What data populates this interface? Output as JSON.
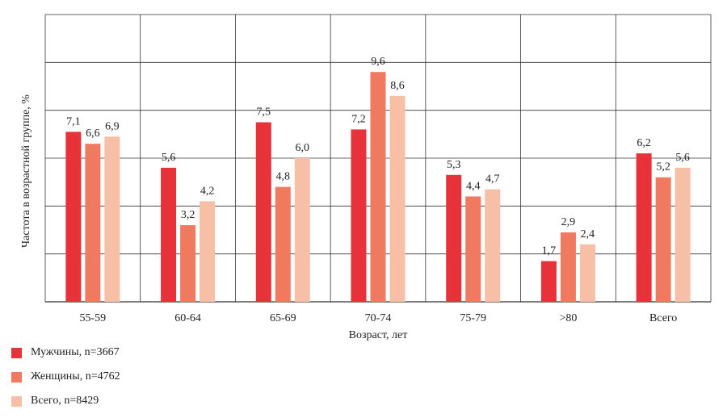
{
  "chart_data": {
    "type": "bar",
    "categories": [
      "55-59",
      "60-64",
      "65-69",
      "70-74",
      "75-79",
      ">80",
      "Всего"
    ],
    "series": [
      {
        "name": "Мужчины, n=3667",
        "color": "#e8323a",
        "values": [
          7.1,
          5.6,
          7.5,
          7.2,
          5.3,
          1.7,
          6.2
        ],
        "labels": [
          "7,1",
          "5,6",
          "7,5",
          "7,2",
          "5,3",
          "1,7",
          "6,2"
        ]
      },
      {
        "name": "Женщины, n=4762",
        "color": "#ef7a60",
        "values": [
          6.6,
          3.2,
          4.8,
          9.6,
          4.4,
          2.9,
          5.2
        ],
        "labels": [
          "6,6",
          "3,2",
          "4,8",
          "9,6",
          "4,4",
          "2,9",
          "5,2"
        ]
      },
      {
        "name": "Всего, n=8429",
        "color": "#f6bfa6",
        "values": [
          6.9,
          4.2,
          6.0,
          8.6,
          4.7,
          2.4,
          5.6
        ],
        "labels": [
          "6,9",
          "4,2",
          "6,0",
          "8,6",
          "4,7",
          "2,4",
          "5,6"
        ]
      }
    ],
    "xlabel": "Возраст, лет",
    "ylabel": "Частота в возрастной группе, %",
    "ylim": [
      0,
      12
    ],
    "grid": true,
    "legend_position": "bottom-left"
  }
}
